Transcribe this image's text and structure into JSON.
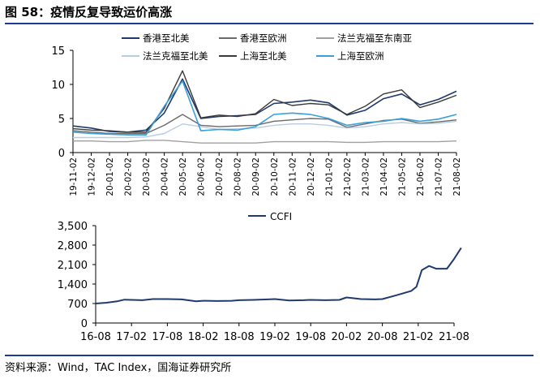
{
  "figure": {
    "title": "图 58：疫情反复导致运价高涨",
    "source": "资料来源：Wind，TAC Index，国海证券研究所"
  },
  "chart_data": [
    {
      "type": "line",
      "x_labels": [
        "19-11-02",
        "19-12-02",
        "20-01-02",
        "20-02-02",
        "20-03-02",
        "20-04-02",
        "20-05-02",
        "20-06-02",
        "20-07-02",
        "20-08-02",
        "20-09-02",
        "20-10-02",
        "20-11-02",
        "20-12-02",
        "21-01-02",
        "21-02-02",
        "21-03-02",
        "21-04-02",
        "21-05-02",
        "21-06-02",
        "21-07-02",
        "21-08-02"
      ],
      "ylim": [
        0,
        15
      ],
      "yticks": [
        0,
        5,
        10,
        15
      ],
      "legend_position": "top",
      "series": [
        {
          "name": "香港至北美",
          "color": "#1f3a6e",
          "width": 1.6,
          "values": [
            3.9,
            3.6,
            3.1,
            3.0,
            3.3,
            5.8,
            10.8,
            5.0,
            5.3,
            5.4,
            5.6,
            7.2,
            7.4,
            7.7,
            7.3,
            5.5,
            6.2,
            7.9,
            8.6,
            7.0,
            7.8,
            9.0
          ]
        },
        {
          "name": "香港至欧洲",
          "color": "#6b6b6b",
          "width": 1.4,
          "values": [
            3.2,
            3.0,
            2.8,
            2.8,
            2.8,
            4.0,
            5.6,
            4.0,
            3.8,
            3.9,
            4.0,
            4.6,
            4.8,
            5.0,
            4.9,
            3.7,
            4.2,
            4.7,
            4.9,
            4.3,
            4.5,
            4.8
          ]
        },
        {
          "name": "法兰克福至东南亚",
          "color": "#a0a0a0",
          "width": 1.4,
          "values": [
            1.7,
            1.7,
            1.6,
            1.6,
            1.8,
            1.8,
            1.6,
            1.4,
            1.4,
            1.4,
            1.4,
            1.6,
            1.6,
            1.6,
            1.6,
            1.5,
            1.5,
            1.6,
            1.6,
            1.6,
            1.6,
            1.7
          ]
        },
        {
          "name": "法兰克福至北美",
          "color": "#b8cce4",
          "width": 1.4,
          "values": [
            2.2,
            2.2,
            2.2,
            2.2,
            2.3,
            2.8,
            4.2,
            3.8,
            3.4,
            3.5,
            3.6,
            4.0,
            4.2,
            4.2,
            4.0,
            3.6,
            3.8,
            4.2,
            4.4,
            4.2,
            4.3,
            4.6
          ]
        },
        {
          "name": "上海至北美",
          "color": "#3a3a3a",
          "width": 1.4,
          "values": [
            3.5,
            3.3,
            3.2,
            3.0,
            3.0,
            6.5,
            12.0,
            5.1,
            5.5,
            5.3,
            5.7,
            7.8,
            6.9,
            7.2,
            7.0,
            5.6,
            6.8,
            8.6,
            9.2,
            6.6,
            7.4,
            8.4
          ]
        },
        {
          "name": "上海至欧洲",
          "color": "#3a9fd8",
          "width": 1.6,
          "values": [
            3.0,
            2.8,
            2.7,
            2.6,
            2.6,
            6.8,
            10.5,
            3.2,
            3.4,
            3.3,
            3.8,
            5.6,
            5.8,
            5.6,
            5.0,
            4.0,
            4.4,
            4.6,
            5.0,
            4.6,
            4.9,
            5.6
          ]
        }
      ]
    },
    {
      "type": "line",
      "x_labels": [
        "16-08",
        "17-02",
        "17-08",
        "18-02",
        "18-08",
        "19-02",
        "19-08",
        "20-02",
        "20-08",
        "21-02",
        "21-08"
      ],
      "ylim": [
        0,
        3500
      ],
      "yticks": [
        0,
        700,
        1400,
        2100,
        2800,
        3500
      ],
      "yticklabels": [
        "0",
        "700",
        "1,400",
        "2,100",
        "2,800",
        "3,500"
      ],
      "legend_position": "top-center",
      "series": [
        {
          "name": "CCFI",
          "color": "#1f3a6e",
          "width": 2,
          "x": [
            0,
            0.3,
            0.6,
            0.8,
            1,
            1.3,
            1.6,
            2,
            2.4,
            2.8,
            3,
            3.4,
            3.8,
            4,
            4.4,
            4.8,
            5,
            5.4,
            5.8,
            6,
            6.4,
            6.8,
            7,
            7.4,
            7.8,
            8,
            8.4,
            8.8,
            8.95,
            9.1,
            9.3,
            9.5,
            9.8,
            10,
            10.2
          ],
          "values": [
            700,
            730,
            780,
            840,
            830,
            820,
            860,
            860,
            850,
            780,
            800,
            790,
            800,
            820,
            830,
            850,
            860,
            810,
            820,
            830,
            820,
            830,
            920,
            860,
            850,
            860,
            1000,
            1150,
            1300,
            1900,
            2050,
            1950,
            1950,
            2300,
            2700
          ]
        }
      ]
    }
  ]
}
